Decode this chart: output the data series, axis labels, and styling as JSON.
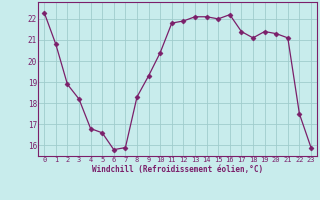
{
  "x": [
    0,
    1,
    2,
    3,
    4,
    5,
    6,
    7,
    8,
    9,
    10,
    11,
    12,
    13,
    14,
    15,
    16,
    17,
    18,
    19,
    20,
    21,
    22,
    23
  ],
  "y": [
    22.3,
    20.8,
    18.9,
    18.2,
    16.8,
    16.6,
    15.8,
    15.9,
    18.3,
    19.3,
    20.4,
    21.8,
    21.9,
    22.1,
    22.1,
    22.0,
    22.2,
    21.4,
    21.1,
    21.4,
    21.3,
    21.1,
    17.5,
    15.9
  ],
  "line_color": "#7b1f6a",
  "marker": "D",
  "markersize": 2.5,
  "bg_color": "#c8ecec",
  "grid_color": "#a0cccc",
  "xlabel": "Windchill (Refroidissement éolien,°C)",
  "ylim": [
    15.5,
    22.8
  ],
  "xlim": [
    -0.5,
    23.5
  ],
  "yticks": [
    16,
    17,
    18,
    19,
    20,
    21,
    22
  ],
  "xticks": [
    0,
    1,
    2,
    3,
    4,
    5,
    6,
    7,
    8,
    9,
    10,
    11,
    12,
    13,
    14,
    15,
    16,
    17,
    18,
    19,
    20,
    21,
    22,
    23
  ]
}
